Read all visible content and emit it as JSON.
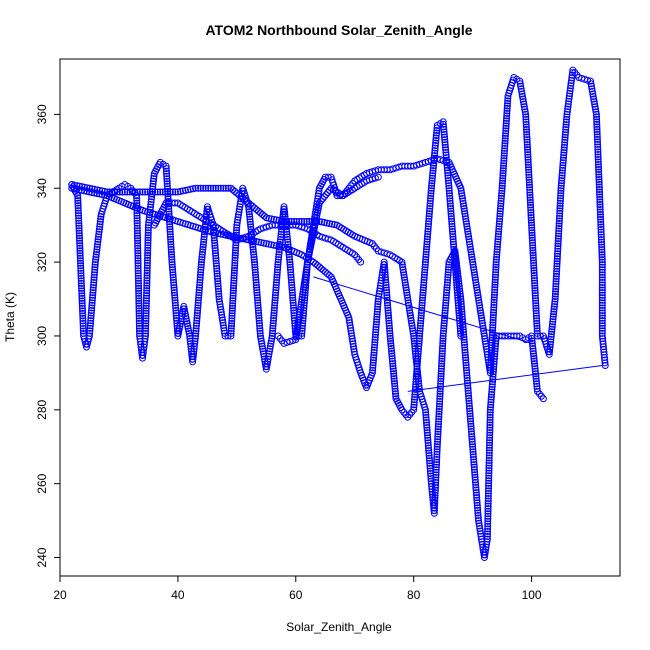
{
  "chart_data": {
    "type": "scatter",
    "title": "ATOM2 Northbound Solar_Zenith_Angle",
    "xlabel": "Solar_Zenith_Angle",
    "ylabel": "Theta (K)",
    "xlim": [
      20,
      115
    ],
    "ylim": [
      235,
      375
    ],
    "xticks": [
      20,
      40,
      60,
      80,
      100
    ],
    "yticks": [
      240,
      260,
      280,
      300,
      320,
      340,
      360
    ],
    "grid": false,
    "legend": "none",
    "marker": "open-circle",
    "color": "#0000ff",
    "series": [
      {
        "points": [
          [
            22,
            341
          ],
          [
            23,
            338
          ],
          [
            24,
            300
          ],
          [
            24.5,
            297
          ],
          [
            25,
            300
          ],
          [
            26,
            320
          ],
          [
            27,
            333
          ],
          [
            28,
            338
          ],
          [
            30,
            340
          ],
          [
            31,
            341
          ],
          [
            32,
            340
          ],
          [
            33,
            338
          ],
          [
            33.5,
            300
          ],
          [
            34,
            294
          ],
          [
            34.5,
            300
          ],
          [
            35,
            330
          ],
          [
            36,
            344
          ],
          [
            37,
            347
          ],
          [
            38,
            346
          ],
          [
            39,
            320
          ],
          [
            40,
            300
          ],
          [
            41,
            308
          ],
          [
            42,
            300
          ],
          [
            42.5,
            293
          ],
          [
            43,
            300
          ],
          [
            44,
            320
          ],
          [
            45,
            335
          ],
          [
            46,
            330
          ],
          [
            47,
            310
          ],
          [
            48,
            300
          ],
          [
            49,
            300
          ],
          [
            50,
            330
          ],
          [
            51,
            340
          ],
          [
            52,
            335
          ],
          [
            53,
            320
          ],
          [
            54,
            300
          ],
          [
            55,
            291
          ],
          [
            56,
            300
          ],
          [
            57,
            320
          ],
          [
            58,
            335
          ],
          [
            59,
            320
          ],
          [
            60,
            300
          ],
          [
            61,
            300
          ],
          [
            62,
            320
          ],
          [
            63,
            330
          ],
          [
            64,
            340
          ],
          [
            65,
            343
          ],
          [
            66,
            343
          ],
          [
            67,
            338
          ],
          [
            68,
            338
          ],
          [
            69,
            340
          ],
          [
            70,
            342
          ],
          [
            72,
            344
          ],
          [
            74,
            345
          ],
          [
            76,
            345
          ],
          [
            78,
            346
          ],
          [
            80,
            346
          ],
          [
            82,
            347
          ],
          [
            84,
            348
          ],
          [
            86,
            347
          ],
          [
            88,
            340
          ],
          [
            90,
            320
          ],
          [
            92,
            300
          ],
          [
            93,
            290
          ],
          [
            94,
            320
          ],
          [
            95,
            340
          ],
          [
            96,
            365
          ],
          [
            97,
            370
          ],
          [
            98,
            369
          ],
          [
            99,
            360
          ],
          [
            100,
            330
          ],
          [
            101,
            300
          ],
          [
            102,
            300
          ],
          [
            103,
            295
          ],
          [
            104,
            310
          ],
          [
            105,
            340
          ],
          [
            106,
            360
          ],
          [
            107,
            372
          ],
          [
            108,
            370
          ],
          [
            110,
            369
          ],
          [
            111,
            360
          ],
          [
            112,
            320
          ],
          [
            112,
            300
          ],
          [
            112.5,
            292
          ]
        ]
      },
      {
        "points": [
          [
            22,
            341
          ],
          [
            25,
            340
          ],
          [
            28,
            339
          ],
          [
            31,
            339
          ],
          [
            34,
            339
          ],
          [
            37,
            339
          ],
          [
            40,
            339
          ],
          [
            43,
            340
          ],
          [
            46,
            340
          ],
          [
            49,
            340
          ],
          [
            52,
            336
          ],
          [
            55,
            332
          ],
          [
            58,
            331
          ],
          [
            61,
            331
          ],
          [
            64,
            331
          ],
          [
            67,
            330
          ],
          [
            70,
            327
          ],
          [
            73,
            325
          ],
          [
            74,
            323
          ],
          [
            76,
            322
          ],
          [
            78,
            320
          ],
          [
            80,
            300
          ],
          [
            81,
            285
          ],
          [
            82,
            280
          ],
          [
            83,
            260
          ],
          [
            83.5,
            252
          ],
          [
            84,
            270
          ],
          [
            85,
            300
          ],
          [
            86,
            320
          ],
          [
            87,
            323
          ],
          [
            88,
            310
          ],
          [
            89,
            290
          ],
          [
            90,
            270
          ],
          [
            91,
            250
          ],
          [
            92,
            240
          ],
          [
            92.5,
            245
          ],
          [
            93,
            280
          ],
          [
            94,
            300
          ],
          [
            96,
            300
          ],
          [
            98,
            300
          ],
          [
            99,
            299
          ],
          [
            100,
            300
          ],
          [
            101,
            285
          ],
          [
            102,
            283
          ]
        ]
      },
      {
        "points": [
          [
            22,
            340
          ],
          [
            28,
            338
          ],
          [
            34,
            334
          ],
          [
            40,
            331
          ],
          [
            46,
            328
          ],
          [
            52,
            326
          ],
          [
            58,
            324
          ],
          [
            61,
            322
          ],
          [
            63,
            320
          ],
          [
            66,
            316
          ],
          [
            69,
            305
          ],
          [
            70,
            295
          ],
          [
            71,
            290
          ],
          [
            72,
            286
          ],
          [
            73,
            290
          ],
          [
            74,
            310
          ],
          [
            75,
            320
          ],
          [
            76,
            300
          ],
          [
            77,
            283
          ],
          [
            78,
            280
          ],
          [
            79,
            278
          ],
          [
            80,
            280
          ],
          [
            81,
            300
          ],
          [
            82,
            320
          ],
          [
            83,
            340
          ],
          [
            84,
            357
          ],
          [
            85,
            358
          ],
          [
            86,
            340
          ],
          [
            87,
            320
          ],
          [
            88,
            300
          ]
        ]
      },
      {
        "points": [
          [
            36,
            330
          ],
          [
            38,
            336
          ],
          [
            40,
            336
          ],
          [
            42,
            334
          ],
          [
            44,
            332
          ],
          [
            46,
            330
          ],
          [
            48,
            328
          ],
          [
            50,
            326
          ],
          [
            52,
            327
          ],
          [
            54,
            329
          ],
          [
            56,
            330
          ],
          [
            58,
            330
          ],
          [
            60,
            330
          ],
          [
            62,
            329
          ],
          [
            64,
            327
          ],
          [
            66,
            326
          ],
          [
            68,
            324
          ],
          [
            70,
            322
          ],
          [
            71,
            320
          ]
        ]
      },
      {
        "points": [
          [
            57,
            300
          ],
          [
            58,
            298
          ],
          [
            60,
            299
          ],
          [
            62,
            320
          ],
          [
            64,
            336
          ],
          [
            66,
            340
          ],
          [
            68,
            338
          ],
          [
            70,
            340
          ],
          [
            72,
            342
          ],
          [
            74,
            343
          ]
        ]
      }
    ],
    "connector_lines": [
      {
        "points": [
          [
            63,
            316
          ],
          [
            100,
            298
          ]
        ]
      },
      {
        "points": [
          [
            79,
            285
          ],
          [
            112,
            292
          ]
        ]
      }
    ]
  }
}
